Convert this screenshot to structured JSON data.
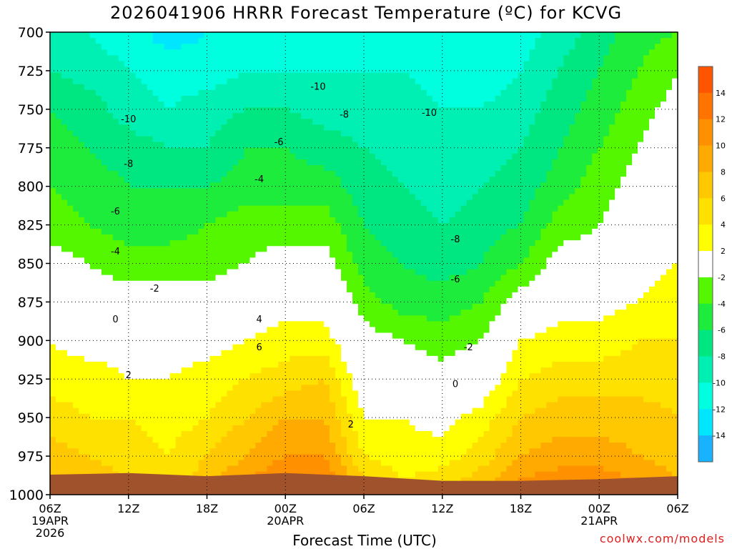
{
  "chart_data": {
    "type": "heatmap",
    "title": "2026041906 HRRR Forecast Temperature (ºC) for KCVG",
    "xlabel": "Forecast Time (UTC)",
    "credit": "coolwx.com/models",
    "x_ticks": [
      {
        "hour": 0,
        "lines": [
          "06Z",
          "19APR",
          "2026"
        ]
      },
      {
        "hour": 6,
        "lines": [
          "12Z"
        ]
      },
      {
        "hour": 12,
        "lines": [
          "18Z"
        ]
      },
      {
        "hour": 18,
        "lines": [
          "00Z",
          "20APR"
        ]
      },
      {
        "hour": 24,
        "lines": [
          "06Z"
        ]
      },
      {
        "hour": 30,
        "lines": [
          "12Z"
        ]
      },
      {
        "hour": 36,
        "lines": [
          "18Z"
        ]
      },
      {
        "hour": 42,
        "lines": [
          "00Z",
          "21APR"
        ]
      },
      {
        "hour": 48,
        "lines": [
          "06Z"
        ]
      }
    ],
    "xlim": [
      0,
      48
    ],
    "y_ticks": [
      700,
      725,
      750,
      775,
      800,
      825,
      850,
      875,
      900,
      925,
      950,
      975,
      1000
    ],
    "ylim": [
      700,
      1000
    ],
    "grid": true,
    "legend": {
      "placement": "right",
      "bins": [
        {
          "from": -16,
          "to": -14,
          "color": "#19b2ff"
        },
        {
          "from": -14,
          "to": -12,
          "color": "#00e6ff"
        },
        {
          "from": -12,
          "to": -10,
          "color": "#00ffde"
        },
        {
          "from": -10,
          "to": -8,
          "color": "#00f0b4"
        },
        {
          "from": -8,
          "to": -6,
          "color": "#00e680"
        },
        {
          "from": -6,
          "to": -4,
          "color": "#1eec3c"
        },
        {
          "from": -4,
          "to": -2,
          "color": "#55f700"
        },
        {
          "from": -2,
          "to": 2,
          "color": "#ffffff"
        },
        {
          "from": 2,
          "to": 4,
          "color": "#ffff00"
        },
        {
          "from": 4,
          "to": 6,
          "color": "#ffe100"
        },
        {
          "from": 6,
          "to": 8,
          "color": "#ffc800"
        },
        {
          "from": 8,
          "to": 10,
          "color": "#ffaa00"
        },
        {
          "from": 10,
          "to": 12,
          "color": "#ff9100"
        },
        {
          "from": 12,
          "to": 14,
          "color": "#ff7300"
        },
        {
          "from": 14,
          "to": 16,
          "color": "#ff5500"
        }
      ],
      "tick_labels": [
        "14",
        "12",
        "10",
        "8",
        "6",
        "4",
        "2",
        "-2",
        "-4",
        "-6",
        "-8",
        "-10",
        "-12",
        "-14"
      ]
    },
    "ground_color": "#a0522d",
    "zero_line_color": "#c8145a",
    "pressures": [
      700,
      725,
      750,
      775,
      800,
      825,
      850,
      875,
      900,
      925,
      950,
      975,
      990
    ],
    "temperature_grid": [
      {
        "hour": 0,
        "values": [
          -9,
          -8,
          -6,
          -5,
          -4,
          -3,
          -1,
          0,
          2,
          3,
          5,
          7,
          8
        ]
      },
      {
        "hour": 3,
        "values": [
          -10,
          -9,
          -7,
          -6,
          -5,
          -4,
          -2,
          -1,
          1,
          3,
          4,
          6,
          7
        ]
      },
      {
        "hour": 6,
        "values": [
          -11,
          -10,
          -9,
          -7,
          -6,
          -5,
          -3,
          -1,
          1,
          2,
          4,
          5,
          6
        ]
      },
      {
        "hour": 9,
        "values": [
          -13,
          -11,
          -10,
          -8,
          -6,
          -5,
          -3,
          -1,
          1,
          2,
          3,
          4,
          5
        ]
      },
      {
        "hour": 12,
        "values": [
          -12,
          -11,
          -9,
          -8,
          -6,
          -4,
          -3,
          -1,
          1,
          3,
          4,
          6,
          7
        ]
      },
      {
        "hour": 15,
        "values": [
          -11,
          -10,
          -8,
          -6,
          -5,
          -3,
          -2,
          0,
          2,
          4,
          6,
          8,
          10
        ]
      },
      {
        "hour": 18,
        "values": [
          -11,
          -10,
          -8,
          -6,
          -5,
          -3,
          -1,
          1,
          3,
          5,
          8,
          10,
          12
        ]
      },
      {
        "hour": 21,
        "values": [
          -11,
          -10,
          -9,
          -7,
          -5,
          -3,
          -1,
          1,
          3,
          6,
          8,
          10,
          12
        ]
      },
      {
        "hour": 24,
        "values": [
          -11,
          -10,
          -9,
          -8,
          -7,
          -6,
          -5,
          -3,
          -1,
          0,
          2,
          4,
          6
        ]
      },
      {
        "hour": 27,
        "values": [
          -11,
          -10,
          -9,
          -9,
          -8,
          -7,
          -6,
          -5,
          -2,
          0,
          2,
          3,
          4
        ]
      },
      {
        "hour": 30,
        "values": [
          -12,
          -11,
          -10,
          -10,
          -9,
          -8,
          -7,
          -5,
          -3,
          -1,
          1,
          3,
          5
        ]
      },
      {
        "hour": 33,
        "values": [
          -12,
          -11,
          -10,
          -9,
          -8,
          -7,
          -6,
          -4,
          -2,
          0,
          3,
          5,
          7
        ]
      },
      {
        "hour": 36,
        "values": [
          -11,
          -10,
          -9,
          -8,
          -7,
          -6,
          -4,
          -1,
          2,
          4,
          6,
          8,
          10
        ]
      },
      {
        "hour": 39,
        "values": [
          -9,
          -8,
          -7,
          -6,
          -5,
          -3,
          -1,
          1,
          3,
          5,
          7,
          9,
          11
        ]
      },
      {
        "hour": 42,
        "values": [
          -7,
          -6,
          -5,
          -4,
          -3,
          -2,
          -1,
          1,
          3,
          5,
          7,
          9,
          11
        ]
      },
      {
        "hour": 45,
        "values": [
          -5,
          -4,
          -3,
          -2,
          -1,
          0,
          1,
          2,
          4,
          5,
          7,
          8,
          10
        ]
      },
      {
        "hour": 48,
        "values": [
          -4,
          -2,
          -1,
          0,
          1,
          1,
          2,
          3,
          4,
          5,
          6,
          7,
          8
        ]
      }
    ],
    "surface_pressure": [
      {
        "hour": 0,
        "p": 987
      },
      {
        "hour": 6,
        "p": 986
      },
      {
        "hour": 12,
        "p": 988
      },
      {
        "hour": 18,
        "p": 986
      },
      {
        "hour": 24,
        "p": 988
      },
      {
        "hour": 30,
        "p": 991
      },
      {
        "hour": 36,
        "p": 991
      },
      {
        "hour": 42,
        "p": 990
      },
      {
        "hour": 48,
        "p": 988
      }
    ],
    "contour_labels": [
      {
        "text": "-10",
        "hour": 6,
        "p": 756
      },
      {
        "text": "-10",
        "hour": 20.5,
        "p": 735
      },
      {
        "text": "-10",
        "hour": 29,
        "p": 752
      },
      {
        "text": "-8",
        "hour": 6,
        "p": 785
      },
      {
        "text": "-8",
        "hour": 22.5,
        "p": 753
      },
      {
        "text": "-8",
        "hour": 31,
        "p": 834
      },
      {
        "text": "-6",
        "hour": 5,
        "p": 816
      },
      {
        "text": "-6",
        "hour": 17.5,
        "p": 771
      },
      {
        "text": "-6",
        "hour": 31,
        "p": 860
      },
      {
        "text": "-4",
        "hour": 5,
        "p": 842
      },
      {
        "text": "-4",
        "hour": 16,
        "p": 795
      },
      {
        "text": "-2",
        "hour": 8,
        "p": 866
      },
      {
        "text": "-2",
        "hour": 32,
        "p": 904
      },
      {
        "text": "0",
        "hour": 5,
        "p": 886
      },
      {
        "text": "0",
        "hour": 31,
        "p": 928
      },
      {
        "text": "2",
        "hour": 6,
        "p": 922
      },
      {
        "text": "2",
        "hour": 23,
        "p": 954
      },
      {
        "text": "4",
        "hour": 16,
        "p": 886
      },
      {
        "text": "6",
        "hour": 16,
        "p": 904
      }
    ]
  }
}
